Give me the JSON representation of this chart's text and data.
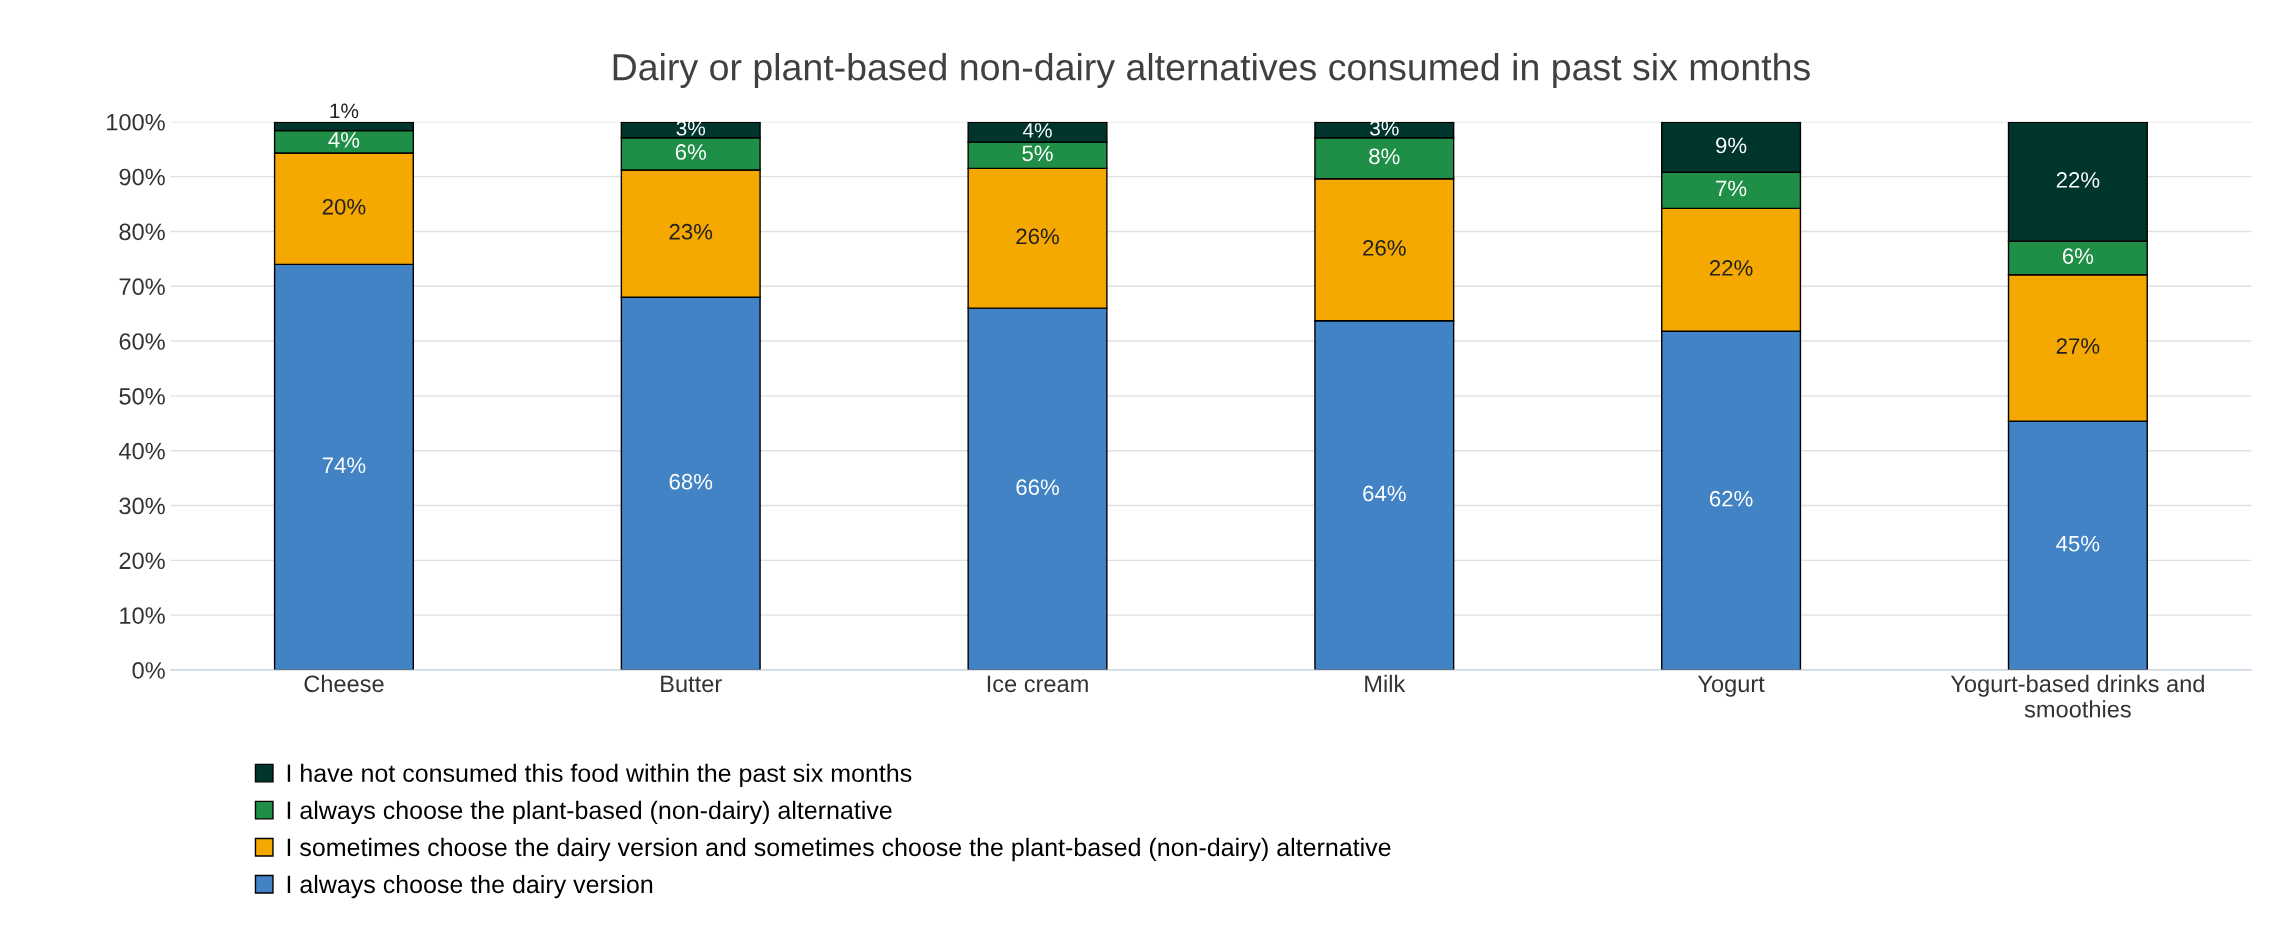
{
  "chart_data": {
    "type": "bar",
    "title": "Dairy or plant-based non-dairy alternatives consumed in past six months",
    "categories": [
      "Cheese",
      "Butter",
      "Ice cream",
      "Milk",
      "Yogurt",
      "Yogurt-based drinks and smoothies"
    ],
    "stacked": true,
    "series": [
      {
        "name": "I always choose the dairy version",
        "color": "#4183c4",
        "values": [
          74,
          68,
          66,
          63.7,
          61.8,
          45.4
        ],
        "value_labels": [
          "74%",
          "68%",
          "66%",
          "64%",
          "62%",
          "45%"
        ]
      },
      {
        "name": "I sometimes choose the dairy version and sometimes choose the plant-based (non-dairy) alternative",
        "color": "#f5a800",
        "values": [
          20.3,
          23.2,
          25.5,
          25.9,
          22.4,
          26.7
        ],
        "value_labels": [
          "20%",
          "23%",
          "26%",
          "26%",
          "22%",
          "27%"
        ]
      },
      {
        "name": "I always choose the plant-based (non-dairy) alternative",
        "color": "#1f8f47",
        "values": [
          4.1,
          5.9,
          4.8,
          7.5,
          6.6,
          6.1
        ],
        "value_labels": [
          "4%",
          "6%",
          "5%",
          "8%",
          "7%",
          "6%"
        ]
      },
      {
        "name": "I have not consumed this food within the past six months",
        "color": "#00352d",
        "values": [
          1.5,
          2.8,
          3.6,
          2.8,
          9.1,
          21.7
        ],
        "value_labels": [
          "1%",
          "3%",
          "4%",
          "3%",
          "9%",
          "22%"
        ]
      }
    ],
    "ylim": [
      0,
      100
    ],
    "yticks": [
      {
        "value": 0,
        "label": "0%"
      },
      {
        "value": 10,
        "label": "10%"
      },
      {
        "value": 20,
        "label": "20%"
      },
      {
        "value": 30,
        "label": "30%"
      },
      {
        "value": 40,
        "label": "40%"
      },
      {
        "value": 50,
        "label": "50%"
      },
      {
        "value": 60,
        "label": "60%"
      },
      {
        "value": 70,
        "label": "70%"
      },
      {
        "value": 80,
        "label": "80%"
      },
      {
        "value": 90,
        "label": "90%"
      },
      {
        "value": 100,
        "label": "100%"
      }
    ],
    "grid": "y",
    "legend": "bottom"
  }
}
